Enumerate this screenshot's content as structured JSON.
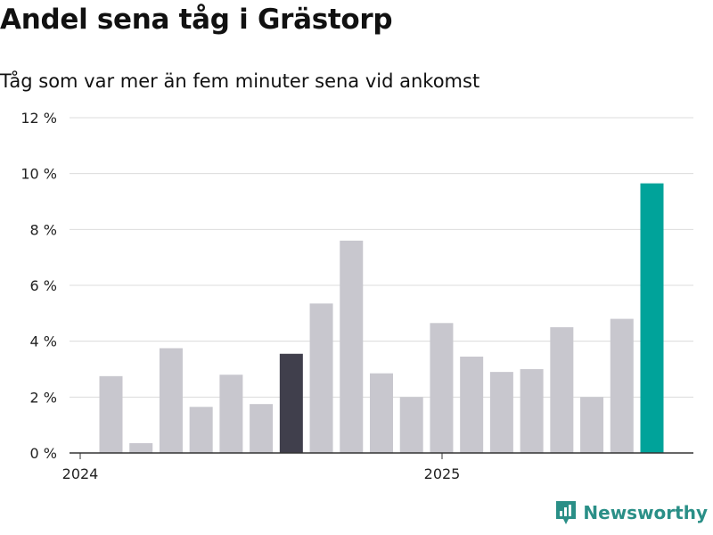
{
  "title": "Andel sena tåg i Grästorp",
  "subtitle": "Tåg som var mer än fem minuter sena vid ankomst",
  "brand": "Newsworthy",
  "colors": {
    "default": "#c8c7ce",
    "highlight_prev": "#403f4c",
    "highlight_latest": "#00a39a",
    "brand": "#2a8f87"
  },
  "chart_data": {
    "type": "bar",
    "yticks": [
      "0 %",
      "2 %",
      "4 %",
      "6 %",
      "8 %",
      "10 %",
      "12 %"
    ],
    "ylim": [
      0,
      12
    ],
    "xlabels": [
      "2024",
      "2025"
    ],
    "values": [
      2.75,
      0.35,
      3.75,
      1.65,
      2.8,
      1.75,
      3.55,
      5.35,
      7.6,
      2.85,
      2.0,
      4.65,
      3.45,
      2.9,
      3.0,
      4.5,
      2.0,
      4.8,
      9.65
    ],
    "highlights": {
      "6": "highlight_prev",
      "18": "highlight_latest"
    },
    "grid": true
  }
}
